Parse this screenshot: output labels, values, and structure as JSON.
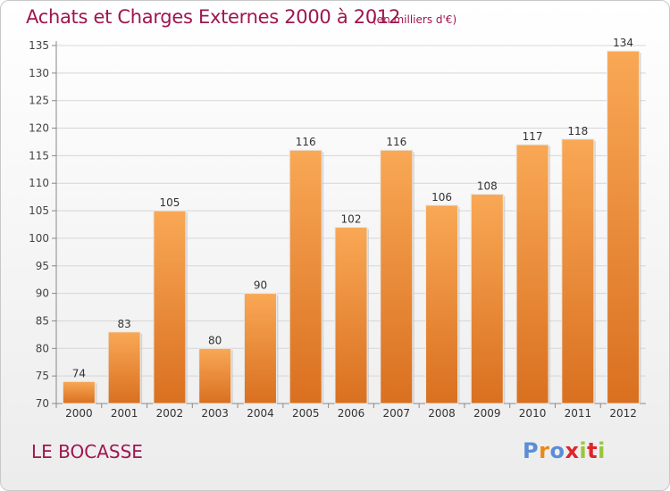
{
  "header": {
    "title": "Achats et Charges Externes 2000 à 2012",
    "subtitle": "(en milliers d'€)"
  },
  "footer": {
    "place": "LE BOCASSE",
    "logo": [
      "P",
      "r",
      "o",
      "x",
      "i",
      "t",
      "i"
    ]
  },
  "colors": {
    "title": "#a0154f",
    "bar_light": "#f9a855",
    "bar_dark": "#d97020",
    "logo_letters": [
      "#5b8ed6",
      "#e88a1a",
      "#5b8ed6",
      "#e0252a",
      "#9bc53d",
      "#e0252a",
      "#9bc53d"
    ]
  },
  "chart_data": {
    "type": "bar",
    "title": "Achats et Charges Externes 2000 à 2012",
    "subtitle": "(en milliers d'€)",
    "categories": [
      "2000",
      "2001",
      "2002",
      "2003",
      "2004",
      "2005",
      "2006",
      "2007",
      "2008",
      "2009",
      "2010",
      "2011",
      "2012"
    ],
    "values": [
      74,
      83,
      105,
      80,
      90,
      116,
      102,
      116,
      106,
      108,
      117,
      118,
      134
    ],
    "ylim": [
      70,
      135
    ],
    "yticks": [
      70,
      75,
      80,
      85,
      90,
      95,
      100,
      105,
      110,
      115,
      120,
      125,
      130,
      135
    ],
    "grid": true,
    "xlabel": "",
    "ylabel": ""
  }
}
